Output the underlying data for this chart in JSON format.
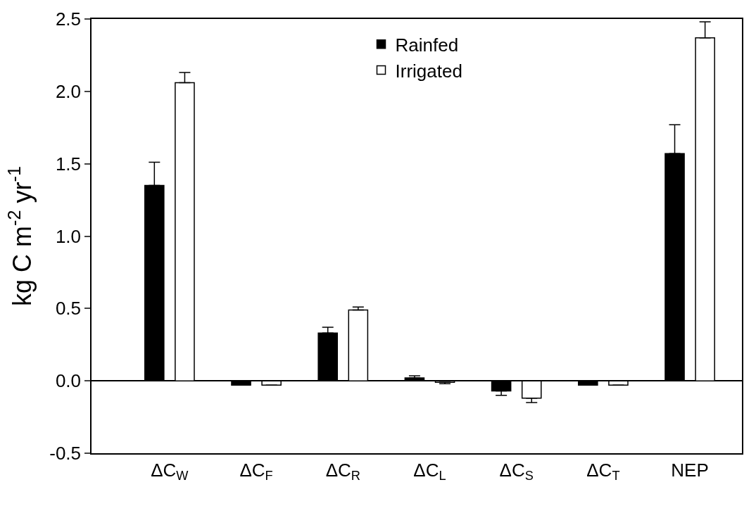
{
  "chart_data": {
    "type": "bar",
    "categories": [
      "ΔC$_{W}$",
      "ΔC$_{F}$",
      "ΔC$_{R}$",
      "ΔC$_{L}$",
      "ΔC$_{S}$",
      "ΔC$_{T}$",
      "NEP"
    ],
    "ylabel": "kg C m$^{-2}$ yr$^{-1}$",
    "series": [
      {
        "name": "Rainfed",
        "color": "#000000",
        "values": [
          1.35,
          -0.03,
          0.33,
          0.02,
          -0.07,
          -0.03,
          1.57
        ],
        "errors": [
          [
            1.35,
            1.51
          ],
          [
            -0.03,
            -0.03
          ],
          [
            0.33,
            0.37
          ],
          [
            0.02,
            0.035
          ],
          [
            -0.1,
            -0.07
          ],
          [
            -0.03,
            -0.03
          ],
          [
            1.57,
            1.77
          ]
        ]
      },
      {
        "name": "Irrigated",
        "color": "#ffffff",
        "values": [
          2.06,
          -0.03,
          0.49,
          -0.01,
          -0.12,
          -0.03,
          2.37
        ],
        "errors": [
          [
            2.06,
            2.13
          ],
          [
            -0.03,
            -0.03
          ],
          [
            0.49,
            0.51
          ],
          [
            -0.02,
            -0.01
          ],
          [
            -0.15,
            -0.12
          ],
          [
            -0.03,
            -0.03
          ],
          [
            2.37,
            2.48
          ]
        ]
      }
    ],
    "ylim": [
      -0.5,
      2.5
    ],
    "yticks": [
      {
        "value": -0.5,
        "label": "-0.5"
      },
      {
        "value": 0,
        "label": "0.0"
      },
      {
        "value": 0.5,
        "label": "0.5"
      },
      {
        "value": 1,
        "label": "1.0"
      },
      {
        "value": 1.5,
        "label": "1.5"
      },
      {
        "value": 2,
        "label": "2.0"
      },
      {
        "value": 2.5,
        "label": "2.5"
      }
    ],
    "legend": "top"
  }
}
